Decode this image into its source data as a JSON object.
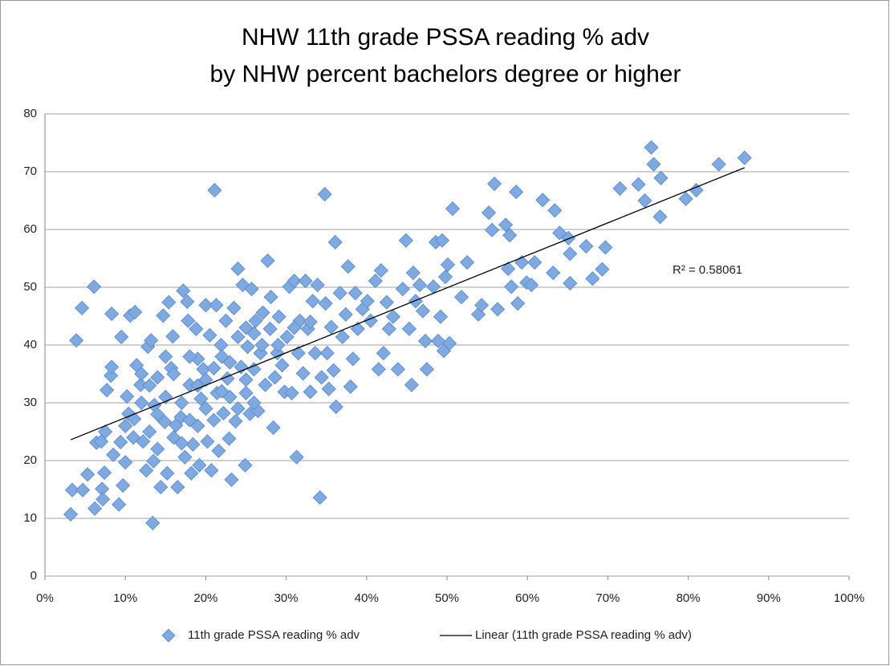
{
  "chart_data": {
    "type": "scatter",
    "title": [
      "NHW 11th grade PSSA reading % adv",
      "by NHW percent bachelors degree or higher"
    ],
    "annotation": "R² = 0.58061",
    "xlim": [
      0,
      100
    ],
    "xticks": [
      {
        "value": 0,
        "label": "0%"
      },
      {
        "value": 10,
        "label": "10%"
      },
      {
        "value": 20,
        "label": "20%"
      },
      {
        "value": 30,
        "label": "30%"
      },
      {
        "value": 40,
        "label": "40%"
      },
      {
        "value": 50,
        "label": "50%"
      },
      {
        "value": 60,
        "label": "60%"
      },
      {
        "value": 70,
        "label": "70%"
      },
      {
        "value": 80,
        "label": "80%"
      },
      {
        "value": 90,
        "label": "90%"
      },
      {
        "value": 100,
        "label": "100%"
      }
    ],
    "ylim": [
      0,
      80
    ],
    "yticks": [
      0,
      10,
      20,
      30,
      40,
      50,
      60,
      70,
      80
    ],
    "grid": true,
    "legend": "bottom",
    "series": [
      {
        "name": "11th grade PSSA reading % adv",
        "color": "#7ea9e1",
        "type": "scatter",
        "x": [
          3.2,
          3.4,
          3.9,
          4.6,
          4.7,
          5.3,
          6.1,
          6.2,
          6.4,
          7.0,
          7.1,
          7.2,
          7.4,
          7.5,
          7.7,
          8.2,
          8.3,
          8.3,
          8.5,
          9.2,
          9.5,
          9.4,
          9.7,
          10.0,
          10.2,
          10.4,
          10.6,
          11.2,
          11.1,
          11.4,
          11.9,
          12.2,
          12.6,
          12.8,
          13.2,
          13.4,
          13.5,
          13.6,
          14.0,
          14.4,
          14.7,
          14.9,
          15.2,
          15.4,
          15.7,
          15.9,
          16.3,
          16.5,
          16.9,
          17.2,
          17.4,
          17.7,
          17.8,
          18.0,
          18.2,
          18.4,
          18.8,
          19.0,
          19.2,
          19.4,
          19.7,
          20.0,
          20.2,
          20.5,
          20.7,
          21.1,
          21.3,
          21.4,
          21.6,
          21.9,
          22.2,
          22.5,
          22.7,
          22.9,
          23.2,
          23.5,
          23.7,
          24.0,
          24.0,
          24.4,
          24.6,
          24.9,
          25.0,
          25.2,
          25.5,
          25.7,
          26.0,
          26.2,
          26.5,
          26.8,
          27.1,
          27.4,
          27.7,
          28.0,
          28.1,
          28.4,
          28.6,
          28.9,
          29.1,
          29.5,
          29.8,
          30.1,
          30.4,
          30.7,
          31.0,
          31.3,
          31.5,
          31.7,
          32.1,
          32.4,
          32.7,
          33.0,
          33.3,
          33.6,
          33.9,
          34.2,
          34.4,
          34.8,
          34.9,
          35.1,
          35.3,
          35.6,
          35.9,
          36.1,
          36.2,
          36.7,
          37.0,
          37.4,
          37.7,
          38.0,
          38.3,
          38.6,
          38.9,
          39.5,
          40.1,
          40.5,
          41.1,
          41.5,
          41.8,
          42.1,
          42.5,
          42.8,
          43.3,
          43.9,
          44.5,
          44.9,
          45.3,
          45.6,
          45.8,
          46.1,
          46.6,
          47.0,
          47.3,
          47.5,
          48.3,
          48.6,
          48.9,
          49.2,
          49.4,
          49.6,
          49.8,
          50.1,
          50.3,
          50.7,
          51.8,
          52.5,
          53.9,
          54.3,
          55.2,
          55.6,
          55.9,
          56.3,
          57.3,
          57.6,
          57.8,
          58.0,
          58.6,
          58.8,
          59.3,
          59.9,
          60.5,
          60.9,
          61.9,
          63.2,
          63.4,
          64.0,
          65.1,
          65.3,
          65.3,
          67.3,
          68.1,
          69.3,
          69.7,
          71.5,
          73.8,
          74.6,
          75.7,
          76.5,
          76.6,
          75.4,
          79.7,
          81.0,
          83.8,
          87.0,
          12,
          13,
          14,
          15,
          16,
          17,
          18,
          19,
          20,
          21,
          22,
          23,
          24,
          25,
          26,
          27,
          11,
          12,
          14,
          16,
          18,
          20,
          22,
          26,
          29,
          31,
          33,
          15,
          17,
          19,
          10,
          13,
          21,
          23,
          25
        ],
        "values": [
          10.7,
          14.9,
          40.8,
          46.4,
          14.9,
          17.6,
          50.1,
          11.7,
          23.1,
          23.3,
          15.1,
          13.3,
          17.9,
          25.0,
          32.2,
          34.7,
          45.4,
          36.2,
          21.0,
          12.4,
          41.4,
          23.2,
          15.7,
          19.7,
          31.1,
          28.1,
          45.1,
          45.7,
          27.2,
          36.5,
          33.1,
          23.3,
          18.3,
          39.7,
          40.8,
          9.2,
          19.9,
          29.6,
          34.4,
          15.4,
          45.1,
          26.7,
          17.8,
          47.4,
          36.0,
          41.5,
          26.1,
          15.4,
          27.5,
          49.4,
          20.6,
          47.5,
          44.2,
          33.1,
          17.8,
          22.8,
          42.8,
          37.6,
          19.2,
          30.7,
          35.8,
          46.9,
          23.3,
          41.7,
          18.3,
          66.8,
          46.9,
          31.7,
          21.7,
          40.0,
          28.2,
          44.2,
          34.2,
          23.8,
          16.7,
          46.4,
          26.8,
          41.4,
          53.2,
          36.2,
          50.4,
          19.2,
          31.7,
          39.7,
          28.1,
          49.7,
          35.8,
          44.2,
          28.6,
          38.6,
          45.6,
          33.1,
          54.6,
          42.8,
          48.3,
          25.7,
          34.4,
          38.6,
          44.9,
          36.5,
          31.9,
          41.4,
          50.1,
          31.7,
          51.1,
          20.6,
          38.6,
          44.2,
          35.1,
          51.1,
          42.8,
          31.9,
          47.6,
          38.6,
          50.4,
          13.6,
          34.4,
          66.1,
          47.2,
          38.6,
          32.4,
          43.1,
          35.6,
          57.8,
          29.3,
          49.0,
          41.4,
          45.3,
          53.6,
          32.8,
          37.6,
          49.0,
          42.8,
          46.2,
          47.6,
          44.2,
          51.1,
          35.8,
          52.9,
          38.6,
          47.4,
          42.8,
          44.9,
          35.8,
          49.7,
          58.1,
          42.8,
          33.1,
          52.5,
          47.6,
          50.4,
          45.9,
          40.7,
          35.8,
          50.1,
          57.8,
          40.7,
          44.9,
          58.1,
          39.0,
          51.8,
          53.9,
          40.3,
          63.6,
          48.3,
          54.3,
          45.3,
          46.9,
          62.9,
          59.9,
          67.9,
          46.2,
          60.8,
          53.2,
          59.0,
          50.1,
          66.5,
          47.2,
          54.3,
          50.8,
          50.4,
          54.3,
          65.1,
          52.5,
          63.3,
          59.4,
          58.5,
          55.8,
          50.7,
          57.1,
          51.5,
          53.1,
          56.9,
          67.1,
          67.8,
          65.0,
          71.3,
          62.2,
          68.9,
          74.2,
          65.3,
          66.8,
          71.3,
          72.4,
          30,
          25,
          28,
          31,
          35,
          30,
          27,
          33,
          29,
          36,
          38,
          31,
          29,
          34,
          30,
          40,
          24,
          35,
          22,
          24,
          38,
          34,
          32,
          42,
          40,
          43,
          44,
          38,
          23,
          26,
          26,
          33,
          27,
          37,
          43
        ]
      },
      {
        "name": "Linear (11th grade PSSA reading % adv)",
        "color": "#000000",
        "type": "line",
        "x": [
          3.2,
          87.0
        ],
        "values": [
          23.6,
          70.7
        ]
      }
    ]
  }
}
